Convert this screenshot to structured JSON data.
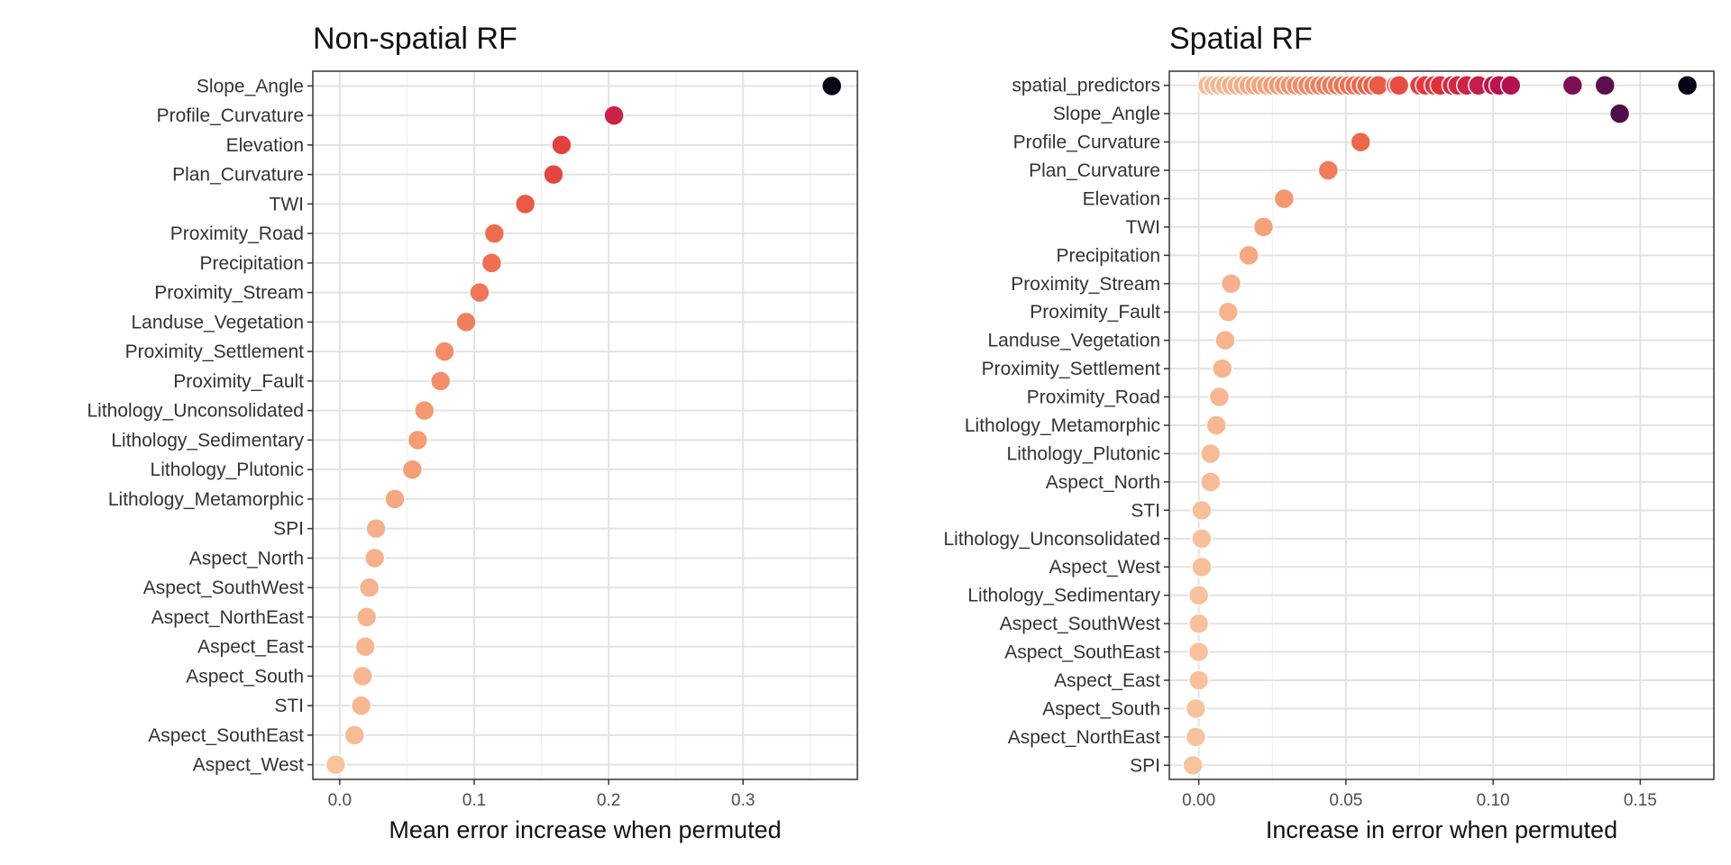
{
  "chart_data": [
    {
      "type": "scatter",
      "title": "Non-spatial RF",
      "xlabel": "Mean error increase when permuted",
      "ylabel": "",
      "xlim": [
        -0.02,
        0.385
      ],
      "xticks": [
        0.0,
        0.1,
        0.2,
        0.3
      ],
      "xtick_labels": [
        "0.0",
        "0.1",
        "0.2",
        "0.3"
      ],
      "grid": true,
      "colormap": "magma (light peach = low, black = high)",
      "categories": [
        "Slope_Angle",
        "Profile_Curvature",
        "Elevation",
        "Plan_Curvature",
        "TWI",
        "Proximity_Road",
        "Precipitation",
        "Proximity_Stream",
        "Landuse_Vegetation",
        "Proximity_Settlement",
        "Proximity_Fault",
        "Lithology_Unconsolidated",
        "Lithology_Sedimentary",
        "Lithology_Plutonic",
        "Lithology_Metamorphic",
        "SPI",
        "Aspect_North",
        "Aspect_SouthWest",
        "Aspect_NorthEast",
        "Aspect_East",
        "Aspect_South",
        "STI",
        "Aspect_SouthEast",
        "Aspect_West"
      ],
      "points": [
        {
          "label": "Slope_Angle",
          "x": 0.366
        },
        {
          "label": "Profile_Curvature",
          "x": 0.204
        },
        {
          "label": "Elevation",
          "x": 0.165
        },
        {
          "label": "Plan_Curvature",
          "x": 0.159
        },
        {
          "label": "TWI",
          "x": 0.138
        },
        {
          "label": "Proximity_Road",
          "x": 0.115
        },
        {
          "label": "Precipitation",
          "x": 0.113
        },
        {
          "label": "Proximity_Stream",
          "x": 0.104
        },
        {
          "label": "Landuse_Vegetation",
          "x": 0.094
        },
        {
          "label": "Proximity_Settlement",
          "x": 0.078
        },
        {
          "label": "Proximity_Fault",
          "x": 0.075
        },
        {
          "label": "Lithology_Unconsolidated",
          "x": 0.063
        },
        {
          "label": "Lithology_Sedimentary",
          "x": 0.058
        },
        {
          "label": "Lithology_Plutonic",
          "x": 0.054
        },
        {
          "label": "Lithology_Metamorphic",
          "x": 0.041
        },
        {
          "label": "SPI",
          "x": 0.027
        },
        {
          "label": "Aspect_North",
          "x": 0.026
        },
        {
          "label": "Aspect_SouthWest",
          "x": 0.022
        },
        {
          "label": "Aspect_NorthEast",
          "x": 0.02
        },
        {
          "label": "Aspect_East",
          "x": 0.019
        },
        {
          "label": "Aspect_South",
          "x": 0.017
        },
        {
          "label": "STI",
          "x": 0.016
        },
        {
          "label": "Aspect_SouthEast",
          "x": 0.011
        },
        {
          "label": "Aspect_West",
          "x": -0.003
        }
      ]
    },
    {
      "type": "scatter",
      "title": "Spatial RF",
      "xlabel": "Increase in error when permuted",
      "ylabel": "",
      "xlim": [
        -0.01,
        0.175
      ],
      "xticks": [
        0.0,
        0.05,
        0.1,
        0.15
      ],
      "xtick_labels": [
        "0.00",
        "0.05",
        "0.10",
        "0.15"
      ],
      "grid": true,
      "colormap": "magma (light peach = low, black = high)",
      "categories": [
        "spatial_predictors",
        "Slope_Angle",
        "Profile_Curvature",
        "Plan_Curvature",
        "Elevation",
        "TWI",
        "Precipitation",
        "Proximity_Stream",
        "Proximity_Fault",
        "Landuse_Vegetation",
        "Proximity_Settlement",
        "Proximity_Road",
        "Lithology_Metamorphic",
        "Lithology_Plutonic",
        "Aspect_North",
        "STI",
        "Lithology_Unconsolidated",
        "Aspect_West",
        "Lithology_Sedimentary",
        "Aspect_SouthWest",
        "Aspect_SouthEast",
        "Aspect_East",
        "Aspect_South",
        "Aspect_NorthEast",
        "SPI"
      ],
      "points": [
        {
          "label": "Slope_Angle",
          "x": 0.143
        },
        {
          "label": "Profile_Curvature",
          "x": 0.055
        },
        {
          "label": "Plan_Curvature",
          "x": 0.044
        },
        {
          "label": "Elevation",
          "x": 0.029
        },
        {
          "label": "TWI",
          "x": 0.022
        },
        {
          "label": "Precipitation",
          "x": 0.017
        },
        {
          "label": "Proximity_Stream",
          "x": 0.011
        },
        {
          "label": "Proximity_Fault",
          "x": 0.01
        },
        {
          "label": "Landuse_Vegetation",
          "x": 0.009
        },
        {
          "label": "Proximity_Settlement",
          "x": 0.008
        },
        {
          "label": "Proximity_Road",
          "x": 0.007
        },
        {
          "label": "Lithology_Metamorphic",
          "x": 0.006
        },
        {
          "label": "Lithology_Plutonic",
          "x": 0.004
        },
        {
          "label": "Aspect_North",
          "x": 0.004
        },
        {
          "label": "STI",
          "x": 0.001
        },
        {
          "label": "Lithology_Unconsolidated",
          "x": 0.001
        },
        {
          "label": "Aspect_West",
          "x": 0.001
        },
        {
          "label": "Lithology_Sedimentary",
          "x": 0.0
        },
        {
          "label": "Aspect_SouthWest",
          "x": 0.0
        },
        {
          "label": "Aspect_SouthEast",
          "x": 0.0
        },
        {
          "label": "Aspect_East",
          "x": 0.0
        },
        {
          "label": "Aspect_South",
          "x": -0.001
        },
        {
          "label": "Aspect_NorthEast",
          "x": -0.001
        },
        {
          "label": "SPI",
          "x": -0.002
        }
      ],
      "spatial_predictors_x": [
        0.003,
        0.005,
        0.007,
        0.009,
        0.011,
        0.013,
        0.015,
        0.017,
        0.019,
        0.021,
        0.023,
        0.025,
        0.027,
        0.029,
        0.031,
        0.033,
        0.035,
        0.037,
        0.039,
        0.041,
        0.043,
        0.045,
        0.047,
        0.049,
        0.051,
        0.053,
        0.055,
        0.057,
        0.059,
        0.061,
        0.067,
        0.068,
        0.075,
        0.077,
        0.08,
        0.082,
        0.086,
        0.088,
        0.091,
        0.095,
        0.1,
        0.102,
        0.106,
        0.127,
        0.138,
        0.166
      ]
    }
  ]
}
